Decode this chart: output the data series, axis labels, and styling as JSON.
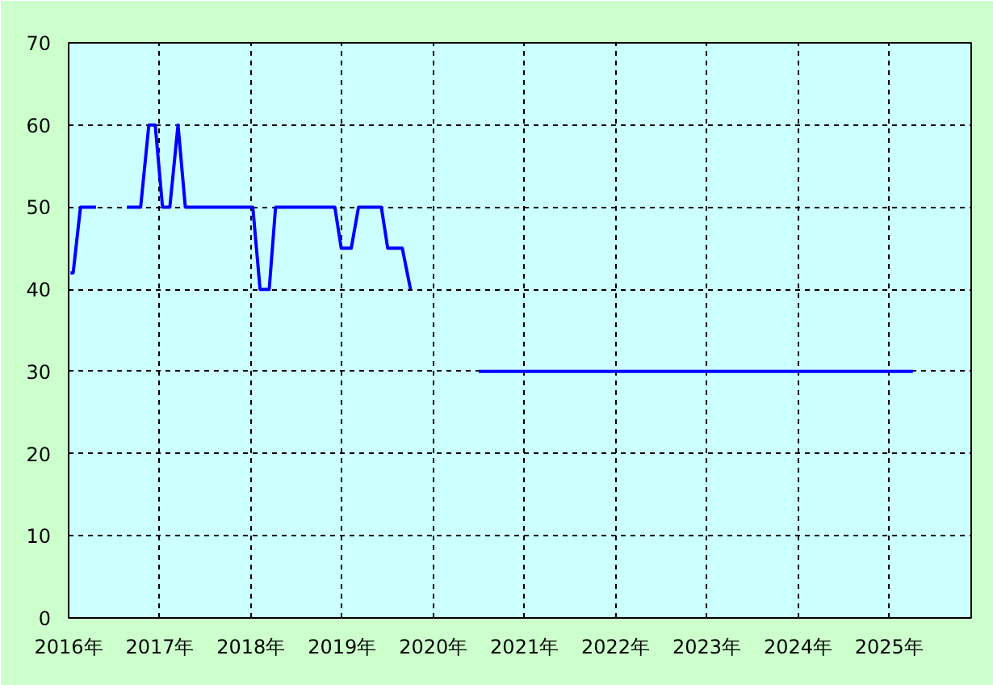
{
  "chart_data": {
    "type": "line",
    "x": [
      2016.02,
      2016.05,
      2016.13,
      2016.3,
      2016.47,
      2016.64,
      2016.79,
      2016.88,
      2016.95,
      2017.03,
      2017.11,
      2017.2,
      2017.28,
      2018.02,
      2018.1,
      2018.2,
      2018.27,
      2018.92,
      2018.99,
      2019.1,
      2019.18,
      2019.43,
      2019.5,
      2019.66,
      2019.75,
      2020.1,
      2020.5,
      2025.26
    ],
    "series": [
      {
        "color": "#0000ff",
        "values": [
          42,
          42,
          50,
          50,
          null,
          50,
          50,
          60,
          60,
          50,
          50,
          60,
          50,
          50,
          40,
          40,
          50,
          50,
          45,
          45,
          50,
          50,
          45,
          45,
          40,
          null,
          30,
          30
        ]
      }
    ],
    "xlim": [
      2016,
      2025.9
    ],
    "xticks": [
      {
        "value": 2016,
        "label": "2016年"
      },
      {
        "value": 2017,
        "label": "2017年"
      },
      {
        "value": 2018,
        "label": "2018年"
      },
      {
        "value": 2019,
        "label": "2019年"
      },
      {
        "value": 2020,
        "label": "2020年"
      },
      {
        "value": 2021,
        "label": "2021年"
      },
      {
        "value": 2022,
        "label": "2022年"
      },
      {
        "value": 2023,
        "label": "2023年"
      },
      {
        "value": 2024,
        "label": "2024年"
      },
      {
        "value": 2025,
        "label": "2025年"
      }
    ],
    "ylim": [
      0,
      70
    ],
    "yticks": [
      0,
      10,
      20,
      30,
      40,
      50,
      60,
      70
    ],
    "grid": true,
    "line_style": "solid"
  }
}
